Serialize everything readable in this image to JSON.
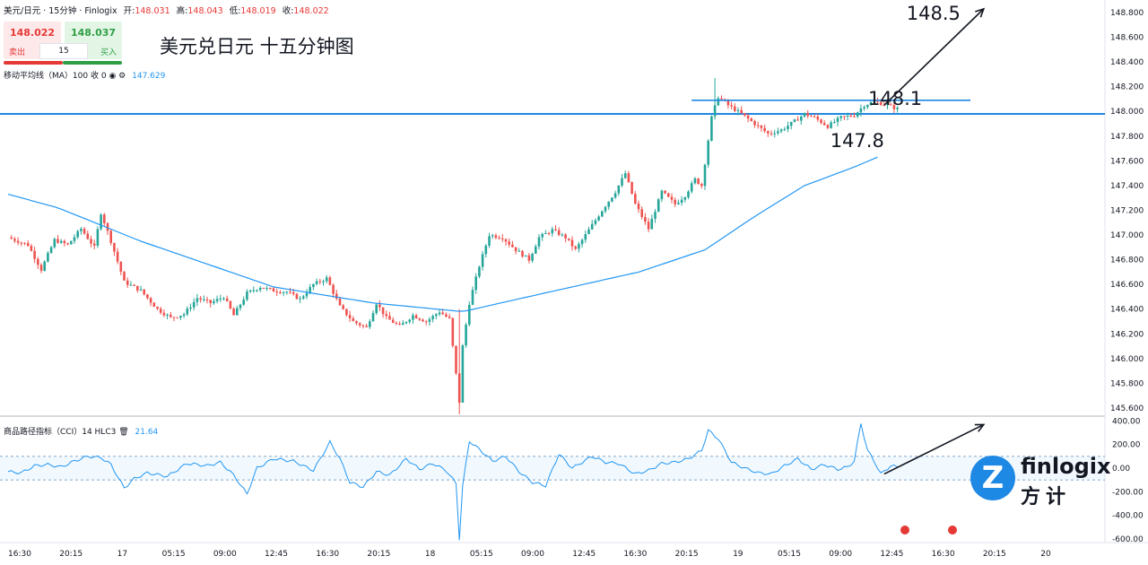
{
  "header": {
    "symbol": "美元/日元 · 15分钟 · Finlogix",
    "open_label": "开:",
    "open": "148.031",
    "high_label": "高:",
    "high": "148.043",
    "low_label": "低:",
    "low": "148.019",
    "close_label": "收:",
    "close": "148.022"
  },
  "trade_panel": {
    "sell_price": "148.022",
    "buy_price": "148.037",
    "sell_label": "卖出",
    "buy_label": "买入",
    "quantity": "15"
  },
  "ma_indicator": {
    "label": "移动平均线（MA）100 收 0",
    "value": "147.629"
  },
  "cci_indicator": {
    "label": "商品路径指标（CCI）14 HLC3",
    "value": "21.64"
  },
  "logo": {
    "text_en": "finlogix",
    "text_cn": "方计",
    "mark": "Z"
  },
  "colors": {
    "up": "#26a69a",
    "down": "#ef5350",
    "ma": "#2196f3",
    "annotation": "#1e88e5",
    "cci": "#2196f3"
  },
  "chart_data": [
    {
      "type": "candlestick",
      "title": "美元兑日元 十五分钟图",
      "ylim": [
        145.5,
        148.9
      ],
      "y_ticks": [
        "148.800",
        "148.600",
        "148.400",
        "148.200",
        "148.000",
        "147.800",
        "147.600",
        "147.400",
        "147.200",
        "147.000",
        "146.800",
        "146.600",
        "146.400",
        "146.200",
        "146.000",
        "145.800",
        "145.600"
      ],
      "y_tick_values": [
        148.8,
        148.6,
        148.4,
        148.2,
        148.0,
        147.8,
        147.6,
        147.4,
        147.2,
        147.0,
        146.8,
        146.6,
        146.4,
        146.2,
        146.0,
        145.8,
        145.6
      ],
      "x_ticks": [
        "16:30",
        "20:15",
        "17",
        "05:15",
        "09:00",
        "12:45",
        "16:30",
        "20:15",
        "18",
        "05:15",
        "09:00",
        "12:45",
        "16:30",
        "20:15",
        "19",
        "05:15",
        "09:00",
        "12:45",
        "16:30",
        "20:15",
        "20"
      ],
      "price_path": [
        [
          0,
          146.98
        ],
        [
          6,
          146.92
        ],
        [
          10,
          146.72
        ],
        [
          14,
          146.96
        ],
        [
          18,
          146.92
        ],
        [
          22,
          147.05
        ],
        [
          26,
          146.9
        ],
        [
          28,
          147.18
        ],
        [
          31,
          146.95
        ],
        [
          35,
          146.62
        ],
        [
          40,
          146.55
        ],
        [
          45,
          146.4
        ],
        [
          49,
          146.33
        ],
        [
          53,
          146.36
        ],
        [
          57,
          146.49
        ],
        [
          61,
          146.45
        ],
        [
          65,
          146.5
        ],
        [
          68,
          146.35
        ],
        [
          72,
          146.53
        ],
        [
          76,
          146.58
        ],
        [
          80,
          146.55
        ],
        [
          84,
          146.54
        ],
        [
          88,
          146.48
        ],
        [
          92,
          146.6
        ],
        [
          96,
          146.65
        ],
        [
          100,
          146.42
        ],
        [
          104,
          146.3
        ],
        [
          108,
          146.25
        ],
        [
          111,
          146.45
        ],
        [
          114,
          146.33
        ],
        [
          118,
          146.26
        ],
        [
          122,
          146.35
        ],
        [
          126,
          146.3
        ],
        [
          130,
          146.38
        ],
        [
          133,
          146.32
        ],
        [
          136,
          145.65
        ],
        [
          137,
          146.1
        ],
        [
          139,
          146.45
        ],
        [
          142,
          146.75
        ],
        [
          145,
          147.0
        ],
        [
          149,
          146.98
        ],
        [
          153,
          146.88
        ],
        [
          157,
          146.8
        ],
        [
          160,
          146.98
        ],
        [
          164,
          147.04
        ],
        [
          168,
          146.98
        ],
        [
          171,
          146.88
        ],
        [
          175,
          147.04
        ],
        [
          179,
          147.2
        ],
        [
          183,
          147.35
        ],
        [
          186,
          147.5
        ],
        [
          189,
          147.25
        ],
        [
          193,
          147.05
        ],
        [
          197,
          147.35
        ],
        [
          201,
          147.25
        ],
        [
          204,
          147.32
        ],
        [
          207,
          147.45
        ],
        [
          209,
          147.4
        ],
        [
          212,
          147.95
        ],
        [
          214,
          148.12
        ],
        [
          217,
          148.05
        ],
        [
          221,
          147.98
        ],
        [
          225,
          147.9
        ],
        [
          229,
          147.82
        ],
        [
          233,
          147.85
        ],
        [
          237,
          147.92
        ],
        [
          240,
          147.98
        ],
        [
          243,
          147.95
        ],
        [
          247,
          147.88
        ],
        [
          251,
          147.95
        ],
        [
          255,
          147.97
        ],
        [
          258,
          148.05
        ],
        [
          261,
          148.08
        ],
        [
          265,
          148.05
        ],
        [
          268,
          148.02
        ]
      ],
      "candle_count": 268,
      "ma_line": [
        [
          0,
          147.33
        ],
        [
          15,
          147.22
        ],
        [
          40,
          146.95
        ],
        [
          80,
          146.58
        ],
        [
          110,
          146.45
        ],
        [
          137,
          146.38
        ],
        [
          160,
          146.52
        ],
        [
          190,
          146.7
        ],
        [
          210,
          146.88
        ],
        [
          225,
          147.15
        ],
        [
          240,
          147.4
        ],
        [
          255,
          147.55
        ],
        [
          262,
          147.63
        ]
      ],
      "annotations": [
        {
          "label": "148.5",
          "kind": "arrow",
          "from": [
            264,
            148.05
          ],
          "to": [
            294,
            148.83
          ]
        },
        {
          "label": "148.1",
          "kind": "segment",
          "from": [
            206,
            148.09
          ],
          "to": [
            290,
            148.09
          ]
        },
        {
          "label": "147.8",
          "kind": "text",
          "at": [
            251,
            147.8
          ]
        }
      ],
      "horizontal_line": 147.98
    },
    {
      "type": "line",
      "title": "",
      "ylim": [
        -650,
        420
      ],
      "y_ticks": [
        "400.00",
        "200.00",
        "0.00",
        "-200.00",
        "-400.00",
        "-600.00"
      ],
      "y_tick_values": [
        400,
        200,
        0,
        -200,
        -400,
        -600
      ],
      "bands": [
        100,
        -100
      ],
      "cci_path": [
        [
          0,
          -30
        ],
        [
          4,
          -40
        ],
        [
          8,
          20
        ],
        [
          12,
          30
        ],
        [
          16,
          10
        ],
        [
          20,
          60
        ],
        [
          24,
          100
        ],
        [
          28,
          90
        ],
        [
          31,
          30
        ],
        [
          35,
          -170
        ],
        [
          38,
          -90
        ],
        [
          42,
          -40
        ],
        [
          48,
          -70
        ],
        [
          54,
          40
        ],
        [
          60,
          20
        ],
        [
          64,
          50
        ],
        [
          68,
          -60
        ],
        [
          72,
          -220
        ],
        [
          75,
          0
        ],
        [
          80,
          80
        ],
        [
          86,
          60
        ],
        [
          92,
          -20
        ],
        [
          97,
          220
        ],
        [
          100,
          80
        ],
        [
          103,
          -120
        ],
        [
          107,
          -160
        ],
        [
          111,
          -30
        ],
        [
          115,
          -60
        ],
        [
          120,
          80
        ],
        [
          124,
          -10
        ],
        [
          128,
          40
        ],
        [
          132,
          -20
        ],
        [
          135,
          -130
        ],
        [
          136,
          -600
        ],
        [
          137,
          -150
        ],
        [
          139,
          230
        ],
        [
          142,
          160
        ],
        [
          146,
          60
        ],
        [
          150,
          100
        ],
        [
          154,
          -30
        ],
        [
          158,
          -120
        ],
        [
          162,
          -150
        ],
        [
          166,
          120
        ],
        [
          170,
          0
        ],
        [
          176,
          100
        ],
        [
          180,
          50
        ],
        [
          184,
          40
        ],
        [
          189,
          -50
        ],
        [
          193,
          -20
        ],
        [
          197,
          40
        ],
        [
          201,
          50
        ],
        [
          205,
          80
        ],
        [
          209,
          150
        ],
        [
          211,
          320
        ],
        [
          214,
          250
        ],
        [
          218,
          50
        ],
        [
          222,
          0
        ],
        [
          226,
          -40
        ],
        [
          230,
          -50
        ],
        [
          234,
          20
        ],
        [
          238,
          80
        ],
        [
          242,
          -10
        ],
        [
          246,
          30
        ],
        [
          250,
          -10
        ],
        [
          253,
          10
        ],
        [
          255,
          60
        ],
        [
          257,
          380
        ],
        [
          259,
          150
        ],
        [
          261,
          60
        ],
        [
          263,
          -50
        ],
        [
          266,
          20
        ],
        [
          268,
          10
        ]
      ],
      "annotations": [
        {
          "kind": "arrow",
          "from": [
            264,
            -50
          ],
          "to": [
            294,
            370
          ]
        }
      ]
    }
  ]
}
